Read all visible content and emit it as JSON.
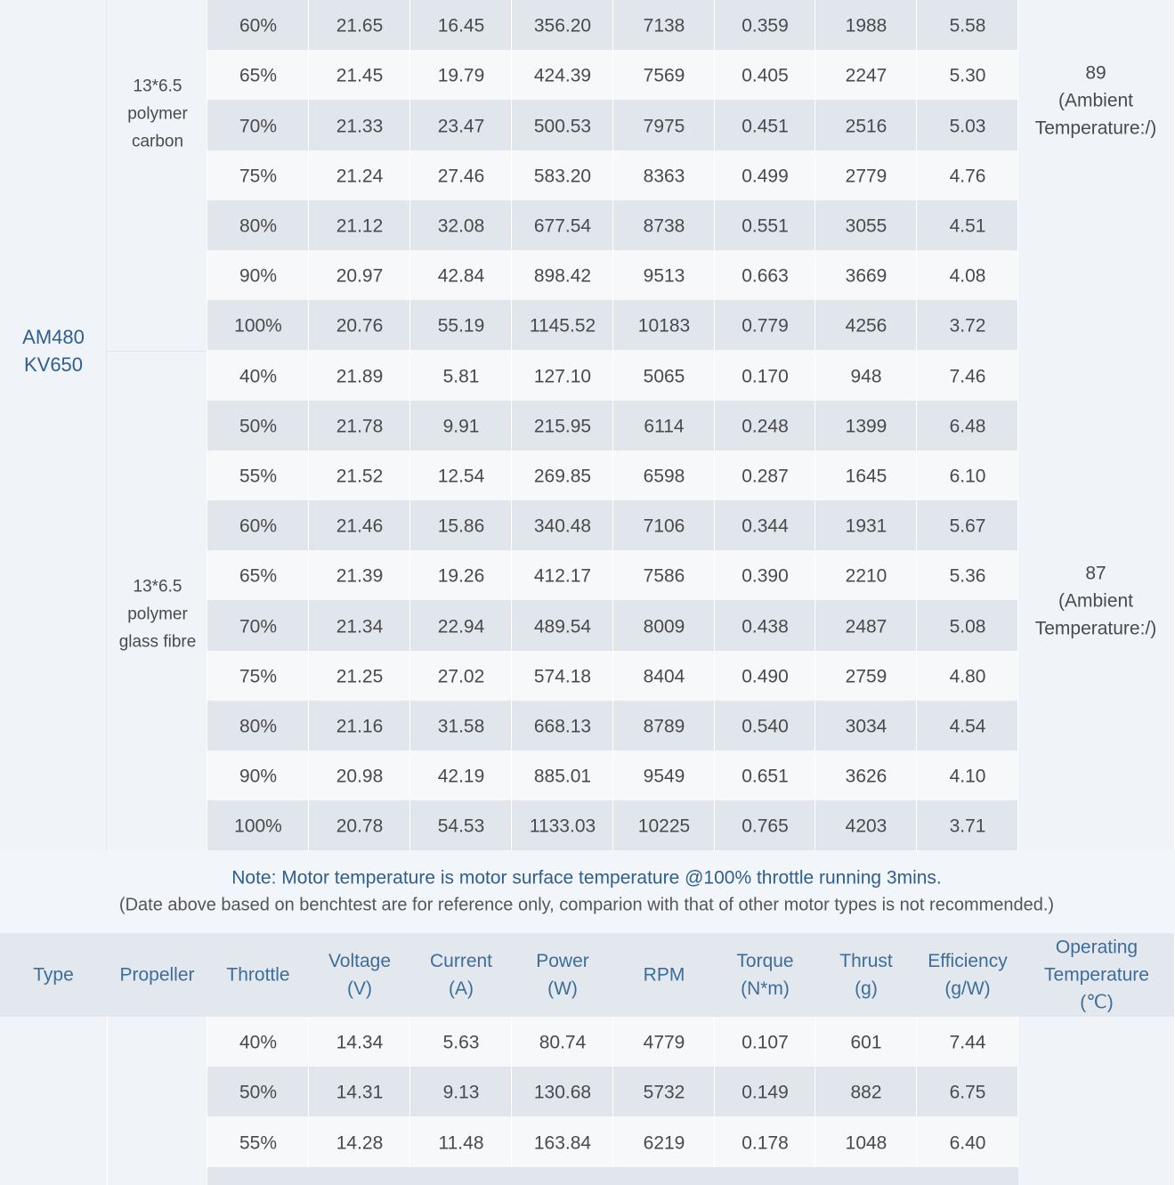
{
  "section1": {
    "type": [
      "AM480",
      "KV650"
    ],
    "groups": [
      {
        "propeller": [
          "13*6.5",
          "polymer",
          "carbon"
        ],
        "operating_temperature": [
          "89",
          "(Ambient",
          "Temperature:/)"
        ],
        "rows": [
          [
            "60%",
            "21.65",
            "16.45",
            "356.20",
            "7138",
            "0.359",
            "1988",
            "5.58"
          ],
          [
            "65%",
            "21.45",
            "19.79",
            "424.39",
            "7569",
            "0.405",
            "2247",
            "5.30"
          ],
          [
            "70%",
            "21.33",
            "23.47",
            "500.53",
            "7975",
            "0.451",
            "2516",
            "5.03"
          ],
          [
            "75%",
            "21.24",
            "27.46",
            "583.20",
            "8363",
            "0.499",
            "2779",
            "4.76"
          ],
          [
            "80%",
            "21.12",
            "32.08",
            "677.54",
            "8738",
            "0.551",
            "3055",
            "4.51"
          ],
          [
            "90%",
            "20.97",
            "42.84",
            "898.42",
            "9513",
            "0.663",
            "3669",
            "4.08"
          ],
          [
            "100%",
            "20.76",
            "55.19",
            "1145.52",
            "10183",
            "0.779",
            "4256",
            "3.72"
          ]
        ]
      },
      {
        "propeller": [
          "13*6.5",
          "polymer",
          "glass fibre"
        ],
        "operating_temperature": [
          "87",
          "(Ambient",
          "Temperature:/)"
        ],
        "rows": [
          [
            "40%",
            "21.89",
            "5.81",
            "127.10",
            "5065",
            "0.170",
            "948",
            "7.46"
          ],
          [
            "50%",
            "21.78",
            "9.91",
            "215.95",
            "6114",
            "0.248",
            "1399",
            "6.48"
          ],
          [
            "55%",
            "21.52",
            "12.54",
            "269.85",
            "6598",
            "0.287",
            "1645",
            "6.10"
          ],
          [
            "60%",
            "21.46",
            "15.86",
            "340.48",
            "7106",
            "0.344",
            "1931",
            "5.67"
          ],
          [
            "65%",
            "21.39",
            "19.26",
            "412.17",
            "7586",
            "0.390",
            "2210",
            "5.36"
          ],
          [
            "70%",
            "21.34",
            "22.94",
            "489.54",
            "8009",
            "0.438",
            "2487",
            "5.08"
          ],
          [
            "75%",
            "21.25",
            "27.02",
            "574.18",
            "8404",
            "0.490",
            "2759",
            "4.80"
          ],
          [
            "80%",
            "21.16",
            "31.58",
            "668.13",
            "8789",
            "0.540",
            "3034",
            "4.54"
          ],
          [
            "90%",
            "20.98",
            "42.19",
            "885.01",
            "9549",
            "0.651",
            "3626",
            "4.10"
          ],
          [
            "100%",
            "20.78",
            "54.53",
            "1133.03",
            "10225",
            "0.765",
            "4203",
            "3.71"
          ]
        ]
      }
    ]
  },
  "notes": [
    "Note: Motor temperature is motor surface temperature @100% throttle running 3mins.",
    "(Date above based on benchtest are for reference only, comparion with that of other motor types is not recommended.)"
  ],
  "header": [
    [
      "Type"
    ],
    [
      "Propeller"
    ],
    [
      "Throttle"
    ],
    [
      "Voltage",
      "(V)"
    ],
    [
      "Current",
      "(A)"
    ],
    [
      "Power",
      "(W)"
    ],
    [
      "RPM"
    ],
    [
      "Torque",
      "(N*m)"
    ],
    [
      "Thrust",
      "(g)"
    ],
    [
      "Efficiency",
      "(g/W)"
    ],
    [
      "Operating",
      "Temperature",
      "(℃)"
    ]
  ],
  "section2": {
    "rows": [
      [
        "40%",
        "14.34",
        "5.63",
        "80.74",
        "4779",
        "0.107",
        "601",
        "7.44"
      ],
      [
        "50%",
        "14.31",
        "9.13",
        "130.68",
        "5732",
        "0.149",
        "882",
        "6.75"
      ],
      [
        "55%",
        "14.28",
        "11.48",
        "163.84",
        "6219",
        "0.178",
        "1048",
        "6.40"
      ]
    ]
  }
}
